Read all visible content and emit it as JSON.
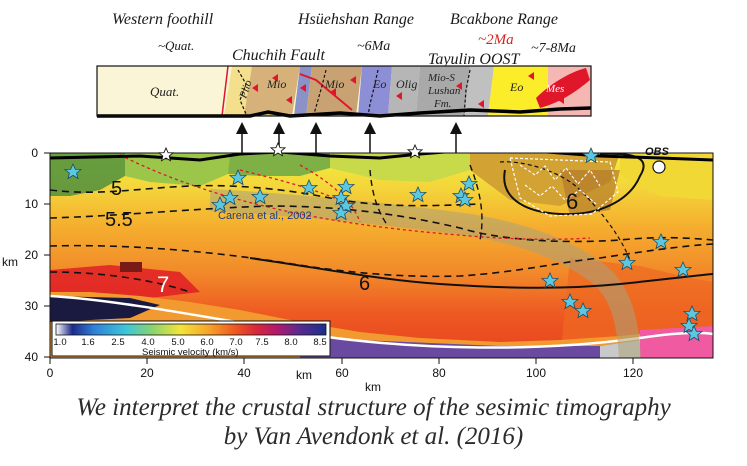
{
  "header_labels": {
    "western_foothill": "Western foothill",
    "quat_age": "~Quat.",
    "chuchih_fault": "Chuchih Fault",
    "hsuehshan_range": "Hsüehshan Range",
    "hsuehshan_age": "~6Ma",
    "backbone_range": "Bcakbone Range",
    "backbone_age_red": "~2Ma",
    "tayulin_oost": "Tayulin OOST",
    "backbone_age": "~7-8Ma"
  },
  "strip_units": {
    "quat": "Quat.",
    "plio": "Plio",
    "mio1": "Mio",
    "mio2": "Mio",
    "eo1": "Eo",
    "olig": "Olig",
    "mio_s_1": "Mio-S",
    "mio_s_2": "Lushan",
    "mio_s_3": "Fm.",
    "eo2": "Eo",
    "mes": "Mes"
  },
  "section": {
    "y_axis_unit": "km",
    "y_ticks": [
      "0",
      "10",
      "20",
      "30",
      "40"
    ],
    "x_ticks": [
      "0",
      "20",
      "40",
      "60",
      "80",
      "100",
      "120"
    ],
    "x_axis_label_inner": "km",
    "x_axis_label_outer": "km",
    "obs_label": "OBS",
    "contours": [
      "5",
      "5.5",
      "6",
      "7",
      "6"
    ],
    "reference": "Carena et al., 2002"
  },
  "colorbar": {
    "ticks": [
      "1.0",
      "1.6",
      "2.5",
      "4.0",
      "5.0",
      "6.0",
      "7.0",
      "7.5",
      "8.0",
      "8.5"
    ],
    "title": "Seismic velocity (km/s)",
    "colors": [
      "#ffffff",
      "#1c2a8a",
      "#2f7fd8",
      "#3ec7d8",
      "#8ed36b",
      "#f2e53a",
      "#f7a72a",
      "#ef5a1f",
      "#d8283a",
      "#b1186e",
      "#5b2a8f",
      "#1b2f8c"
    ]
  },
  "caption": {
    "line1": "We interpret the crustal structure of the sesimic timography",
    "line2": "by Van Avendonk et al. (2016)"
  }
}
